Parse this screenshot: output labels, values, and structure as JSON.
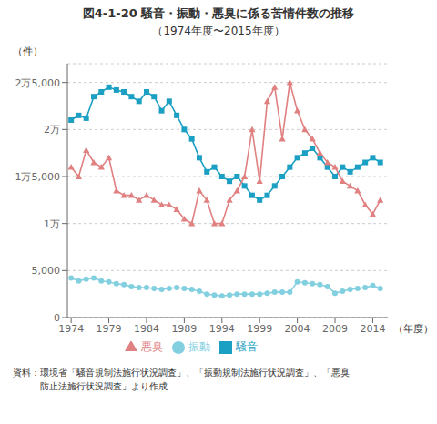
{
  "chart_data": {
    "type": "line",
    "title": "図4-1-20 騒音・振動・悪臭に係る苦情件数の推移",
    "subtitle": "（1974年度〜2015年度）",
    "ylabel": "（件）",
    "xlabel": "（年度）",
    "annotations": [
      "資料：環境省「騒音規制法施行状況調査」、「振動規制法施行状況調査」、「悪臭",
      "　　　防止法施行状況調査」より作成"
    ],
    "x": [
      1974,
      1975,
      1976,
      1977,
      1978,
      1979,
      1980,
      1981,
      1982,
      1983,
      1984,
      1985,
      1986,
      1987,
      1988,
      1989,
      1990,
      1991,
      1992,
      1993,
      1994,
      1995,
      1996,
      1997,
      1998,
      1999,
      2000,
      2001,
      2002,
      2003,
      2004,
      2005,
      2006,
      2007,
      2008,
      2009,
      2010,
      2011,
      2012,
      2013,
      2014,
      2015
    ],
    "series": [
      {
        "name": "騒音",
        "color": "#1b9fc2",
        "marker": "square",
        "values": [
          21000,
          21500,
          21200,
          23500,
          24000,
          24500,
          24200,
          24000,
          23500,
          23000,
          24000,
          23500,
          22000,
          23000,
          21500,
          20000,
          19000,
          17000,
          15500,
          16000,
          15000,
          14500,
          15000,
          14000,
          13000,
          12500,
          13000,
          14000,
          15000,
          16000,
          17000,
          17500,
          18000,
          17000,
          16000,
          15000,
          16000,
          15500,
          16000,
          16500,
          17000,
          16500
        ]
      },
      {
        "name": "振動",
        "color": "#82cfe0",
        "marker": "circle",
        "values": [
          4200,
          3900,
          4100,
          4200,
          3900,
          3800,
          3600,
          3500,
          3300,
          3200,
          3200,
          3100,
          3000,
          3100,
          3200,
          3100,
          3000,
          2800,
          2500,
          2400,
          2300,
          2400,
          2500,
          2500,
          2500,
          2500,
          2600,
          2700,
          2700,
          2700,
          3800,
          3700,
          3600,
          3500,
          3300,
          2600,
          2800,
          3000,
          3100,
          3200,
          3400,
          3100
        ]
      },
      {
        "name": "悪臭",
        "color": "#e08080",
        "marker": "triangle",
        "values": [
          16000,
          15000,
          17800,
          16500,
          16000,
          17000,
          13500,
          13000,
          13000,
          12500,
          13000,
          12500,
          12000,
          12000,
          11500,
          10500,
          10000,
          13500,
          12500,
          10000,
          10000,
          12500,
          13500,
          15000,
          20000,
          14500,
          23000,
          24500,
          19000,
          25000,
          22000,
          20000,
          19000,
          17500,
          16500,
          16000,
          14500,
          14000,
          13500,
          12000,
          11000,
          12500
        ]
      }
    ],
    "xlim": [
      1973.5,
      2016.0
    ],
    "xticks": [
      1974,
      1979,
      1984,
      1989,
      1994,
      1999,
      2004,
      2009,
      2014
    ],
    "ylim": [
      0,
      27000
    ],
    "yticks": [
      0,
      {
        "value": 5000,
        "label": "5,000"
      },
      {
        "value": 10000,
        "label": "1万"
      },
      {
        "value": 15000,
        "label": "1万5,000"
      },
      {
        "value": 20000,
        "label": "2万"
      },
      {
        "value": 25000,
        "label": "2万5,000"
      }
    ],
    "grid": true,
    "legend": "bottom"
  }
}
